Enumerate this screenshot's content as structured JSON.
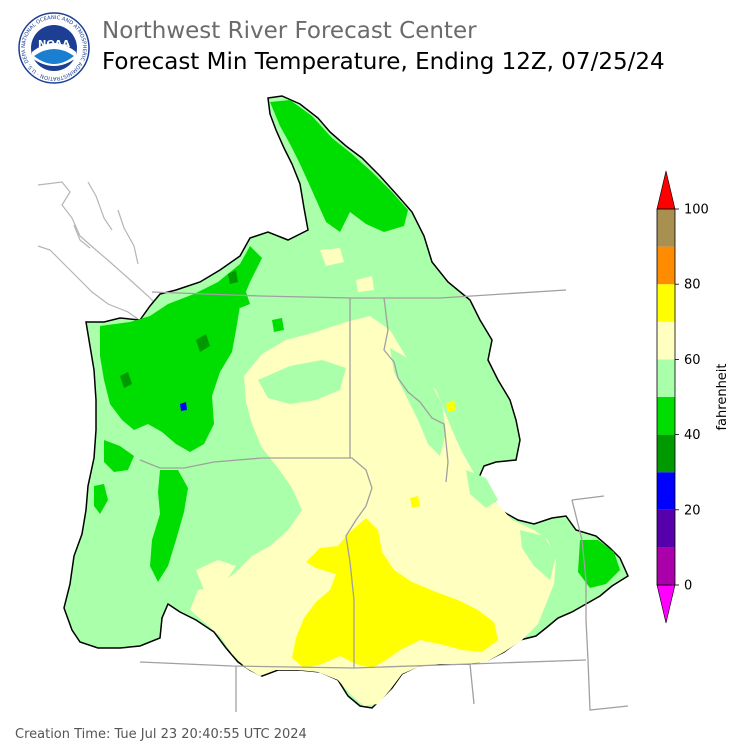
{
  "header": {
    "org_title": "Northwest River Forecast Center",
    "map_title": "Forecast Min Temperature, Ending 12Z, 07/25/24"
  },
  "logo": {
    "icon": "noaa-logo-icon",
    "center_text": "NOAA",
    "ring_text": "NATIONAL OCEANIC AND ATMOSPHERIC ADMINISTRATION · U.S. DEPARTMENT OF COMMERCE"
  },
  "legend": {
    "unit_label": "fahrenheit",
    "tick_labels": [
      "0",
      "20",
      "40",
      "60",
      "80",
      "100"
    ],
    "bins": [
      {
        "range": "below 0",
        "color": "#ff00ff"
      },
      {
        "range": "0-10",
        "color": "#aa00aa"
      },
      {
        "range": "10-20",
        "color": "#5500aa"
      },
      {
        "range": "20-30",
        "color": "#0000ff"
      },
      {
        "range": "30-40",
        "color": "#009900"
      },
      {
        "range": "40-50",
        "color": "#00dd00"
      },
      {
        "range": "50-60",
        "color": "#aaffaa"
      },
      {
        "range": "60-70",
        "color": "#ffffc0"
      },
      {
        "range": "70-80",
        "color": "#ffff00"
      },
      {
        "range": "80-90",
        "color": "#ff8c00"
      },
      {
        "range": "90-100",
        "color": "#a89050"
      },
      {
        "range": "above 100",
        "color": "#ff0000"
      }
    ]
  },
  "footer": {
    "creation_time": "Creation Time: Tue Jul 23 20:40:55 UTC 2024"
  }
}
